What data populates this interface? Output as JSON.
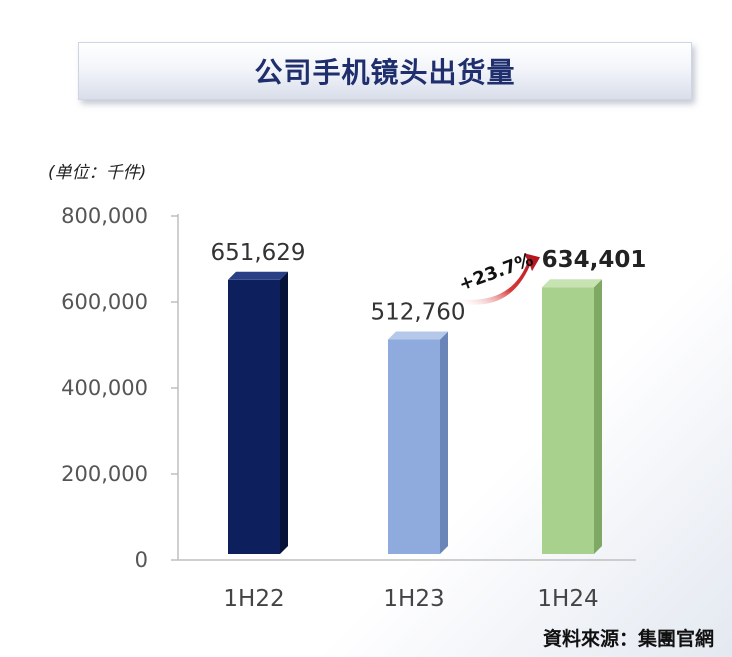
{
  "page": {
    "title": "公司手机镜头出货量",
    "unit": "(单位：千件)",
    "source": "資料來源：集團官網"
  },
  "chart_data": {
    "type": "bar",
    "title": "公司手机镜头出货量",
    "xlabel": "",
    "ylabel": "",
    "ylim": [
      0,
      800000
    ],
    "yticks": [
      0,
      200000,
      400000,
      600000,
      800000
    ],
    "ytick_labels": [
      "0",
      "200,000",
      "400,000",
      "600,000",
      "800,000"
    ],
    "grid": false,
    "categories": [
      "1H22",
      "1H23",
      "1H24"
    ],
    "values": [
      651629,
      512760,
      634401
    ],
    "value_labels": [
      "651,629",
      "512,760",
      "634,401"
    ],
    "bar_colors": [
      "#0d1f5c",
      "#8faadc",
      "#a9d18e"
    ],
    "bar_side_colors": [
      "#061238",
      "#6a85b8",
      "#7fa864"
    ],
    "bar_top_colors": [
      "#2a3f86",
      "#b5c8ea",
      "#c7e3b2"
    ],
    "annotation": {
      "text": "+23.7%",
      "from_category": "1H23",
      "to_category": "1H24",
      "arrow_color": "#c0151f"
    }
  }
}
